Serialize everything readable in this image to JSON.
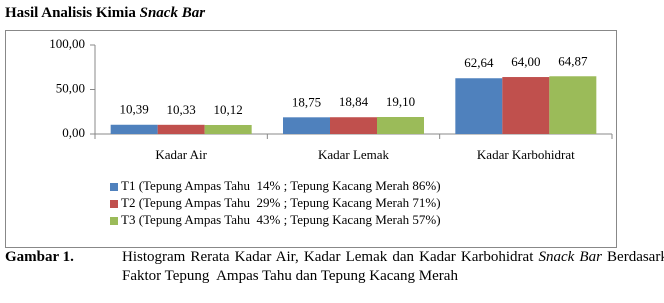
{
  "chart_data": {
    "type": "bar",
    "title": [
      "Hasil Analisis Kimia",
      "Snack Bar"
    ],
    "categories": [
      "Kadar Air",
      "Kadar Lemak",
      "Kadar Karbohidrat"
    ],
    "series": [
      {
        "name": "T1 (Tepung Ampas Tahu  14% ; Tepung Kacang Merah 86%)",
        "color": "#4f81bd",
        "values": [
          10.39,
          18.75,
          62.64
        ],
        "value_labels": [
          "10,39",
          "18,75",
          "62,64"
        ]
      },
      {
        "name": "T2 (Tepung Ampas Tahu  29% ; Tepung Kacang Merah 71%)",
        "color": "#c0504d",
        "values": [
          10.33,
          18.84,
          64.0
        ],
        "value_labels": [
          "10,33",
          "18,84",
          "64,00"
        ]
      },
      {
        "name": "T3 (Tepung Ampas Tahu  43% ; Tepung Kacang Merah 57%)",
        "color": "#9bbb59",
        "values": [
          10.12,
          19.1,
          64.87
        ],
        "value_labels": [
          "10,12",
          "19,10",
          "64,87"
        ]
      }
    ],
    "ylim": [
      0,
      100
    ],
    "yticks": [
      {
        "value": 0,
        "label": "0,00"
      },
      {
        "value": 50,
        "label": "50,00"
      },
      {
        "value": 100,
        "label": "100,00"
      }
    ],
    "grid": false,
    "legend": "bottom"
  },
  "caption": {
    "label": "Gambar 1.",
    "parts": [
      "Histogram Rerata Kadar Air, Kadar Lemak dan Kadar Karbohidrat",
      "Snack Bar",
      "Berdasarkan Faktor Tepung  Ampas Tahu dan Tepung Kacang Merah"
    ]
  }
}
